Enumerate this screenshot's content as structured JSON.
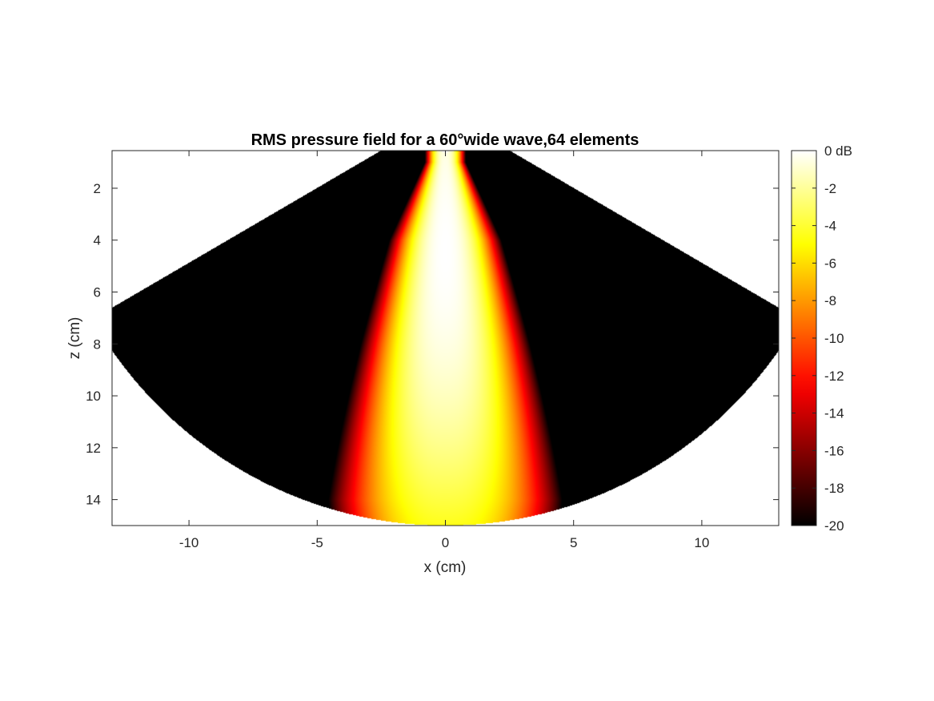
{
  "chart_data": {
    "type": "heatmap",
    "title": "RMS pressure field for a 60°wide wave,64 elements",
    "xlabel": "x (cm)",
    "ylabel": "z (cm)",
    "xlim": [
      -13,
      13
    ],
    "ylim": [
      0.55,
      15
    ],
    "y_reversed": true,
    "x_ticks": [
      -10,
      -5,
      0,
      5,
      10
    ],
    "x_tick_labels": [
      "-10",
      "-5",
      "0",
      "5",
      "10"
    ],
    "y_ticks": [
      2,
      4,
      6,
      8,
      10,
      12,
      14
    ],
    "y_tick_labels": [
      "2",
      "4",
      "6",
      "8",
      "10",
      "12",
      "14"
    ],
    "colormap": "hot",
    "colorbar": {
      "range": [
        -20,
        0
      ],
      "unit": "dB",
      "ticks": [
        0,
        -2,
        -4,
        -6,
        -8,
        -10,
        -12,
        -14,
        -16,
        -18,
        -20
      ],
      "tick_labels": [
        "0 dB",
        "-2",
        "-4",
        "-6",
        "-8",
        "-10",
        "-12",
        "-14",
        "-16",
        "-18",
        "-20"
      ]
    },
    "sector": {
      "apex_z": -0.9,
      "half_angle_deg": 60,
      "inner_radius": 1.5,
      "outer_radius": 15.9
    },
    "beam": {
      "peak_depth": 4.4,
      "peak_level_db": 0,
      "half_width_at_depth": [
        {
          "z": 1,
          "w": 0.7
        },
        {
          "z": 4,
          "w": 1.9
        },
        {
          "z": 8,
          "w": 2.9
        },
        {
          "z": 14,
          "w": 4.3
        }
      ]
    }
  }
}
